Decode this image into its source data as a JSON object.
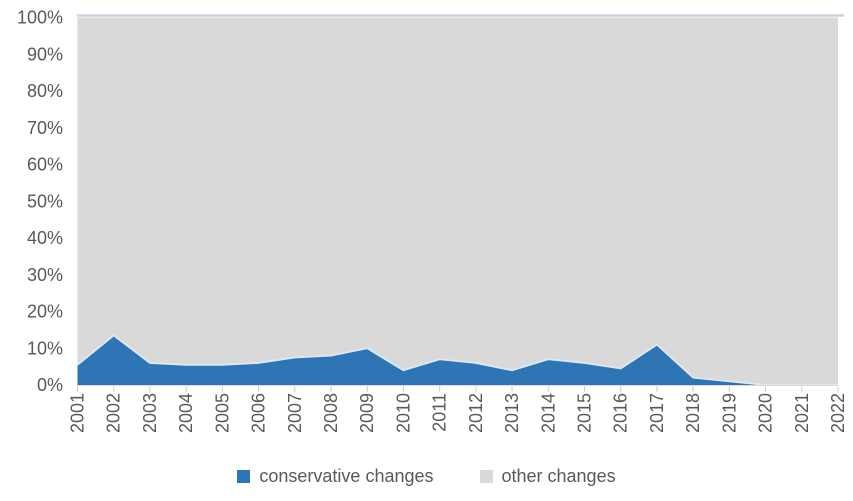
{
  "chart_data": {
    "type": "area",
    "subtype": "100%-stacked-area",
    "title": "",
    "xlabel": "",
    "ylabel": "",
    "categories": [
      2001,
      2002,
      2003,
      2004,
      2005,
      2006,
      2007,
      2008,
      2009,
      2010,
      2011,
      2012,
      2013,
      2014,
      2015,
      2016,
      2017,
      2018,
      2019,
      2020,
      2021,
      2022
    ],
    "series": [
      {
        "name": "conservative changes",
        "color": "#2E75B6",
        "values": [
          5.5,
          13.5,
          6,
          5.5,
          5.5,
          6,
          7.5,
          8,
          10,
          4,
          7,
          6,
          4,
          7,
          6,
          4.5,
          11,
          2,
          1,
          0,
          0,
          0
        ]
      },
      {
        "name": "other changes",
        "color": "#D9D9D9",
        "values": [
          94.5,
          86.5,
          94,
          94.5,
          94.5,
          94,
          92.5,
          92,
          90,
          96,
          93,
          94,
          96,
          93,
          94,
          95.5,
          89,
          98,
          99,
          100,
          100,
          100
        ]
      }
    ],
    "y_axis": {
      "min": 0,
      "max": 100,
      "step": 10,
      "tick_labels": [
        "0%",
        "10%",
        "20%",
        "30%",
        "40%",
        "50%",
        "60%",
        "70%",
        "80%",
        "90%",
        "100%"
      ]
    },
    "x_axis": {
      "label_rotation": -90,
      "tick_marks": true
    },
    "legend": {
      "position": "bottom",
      "items": [
        "conservative changes",
        "other changes"
      ]
    },
    "grid": false
  },
  "colors": {
    "series_blue": "#2E75B6",
    "series_blue_edge": "#DCE9F5",
    "series_gray": "#D9D9D9",
    "axis_text": "#595959",
    "tick_mark": "#C6C6C6",
    "plot_top_border": "#C9D3E2",
    "axis_line": "#D9D9D9",
    "background": "#FFFFFF"
  }
}
